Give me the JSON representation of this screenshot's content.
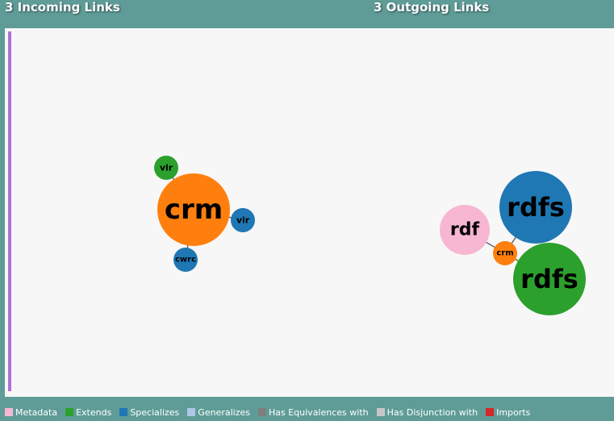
{
  "header": {
    "incoming_title": "3 Incoming Links",
    "outgoing_title": "3 Outgoing Links"
  },
  "colors": {
    "background": "#5f9c98",
    "canvas": "#f7f7f7",
    "accent_bar": "#b070d8"
  },
  "incoming_graph": {
    "center": {
      "label": "crm",
      "color": "#ff7f0e"
    },
    "nodes": [
      {
        "label": "vlr",
        "color": "#2ca02c",
        "type": "Extends"
      },
      {
        "label": "vir",
        "color": "#1f77b4",
        "type": "Specializes"
      },
      {
        "label": "cwrc",
        "color": "#1f77b4",
        "type": "Specializes"
      }
    ]
  },
  "outgoing_graph": {
    "center": {
      "label": "crm",
      "color": "#ff7f0e"
    },
    "nodes": [
      {
        "label": "rdf",
        "color": "#f7b6d2",
        "type": "Metadata"
      },
      {
        "label": "rdfs",
        "color": "#1f77b4",
        "type": "Specializes"
      },
      {
        "label": "rdfs",
        "color": "#2ca02c",
        "type": "Extends"
      }
    ]
  },
  "legend": [
    {
      "label": "Metadata",
      "color": "#f7b6d2"
    },
    {
      "label": "Extends",
      "color": "#2ca02c"
    },
    {
      "label": "Specializes",
      "color": "#1f77b4"
    },
    {
      "label": "Generalizes",
      "color": "#aec7e8"
    },
    {
      "label": "Has Equivalences with",
      "color": "#7f7f7f"
    },
    {
      "label": "Has Disjunction with",
      "color": "#c7c7c7"
    },
    {
      "label": "Imports",
      "color": "#d62728"
    }
  ]
}
